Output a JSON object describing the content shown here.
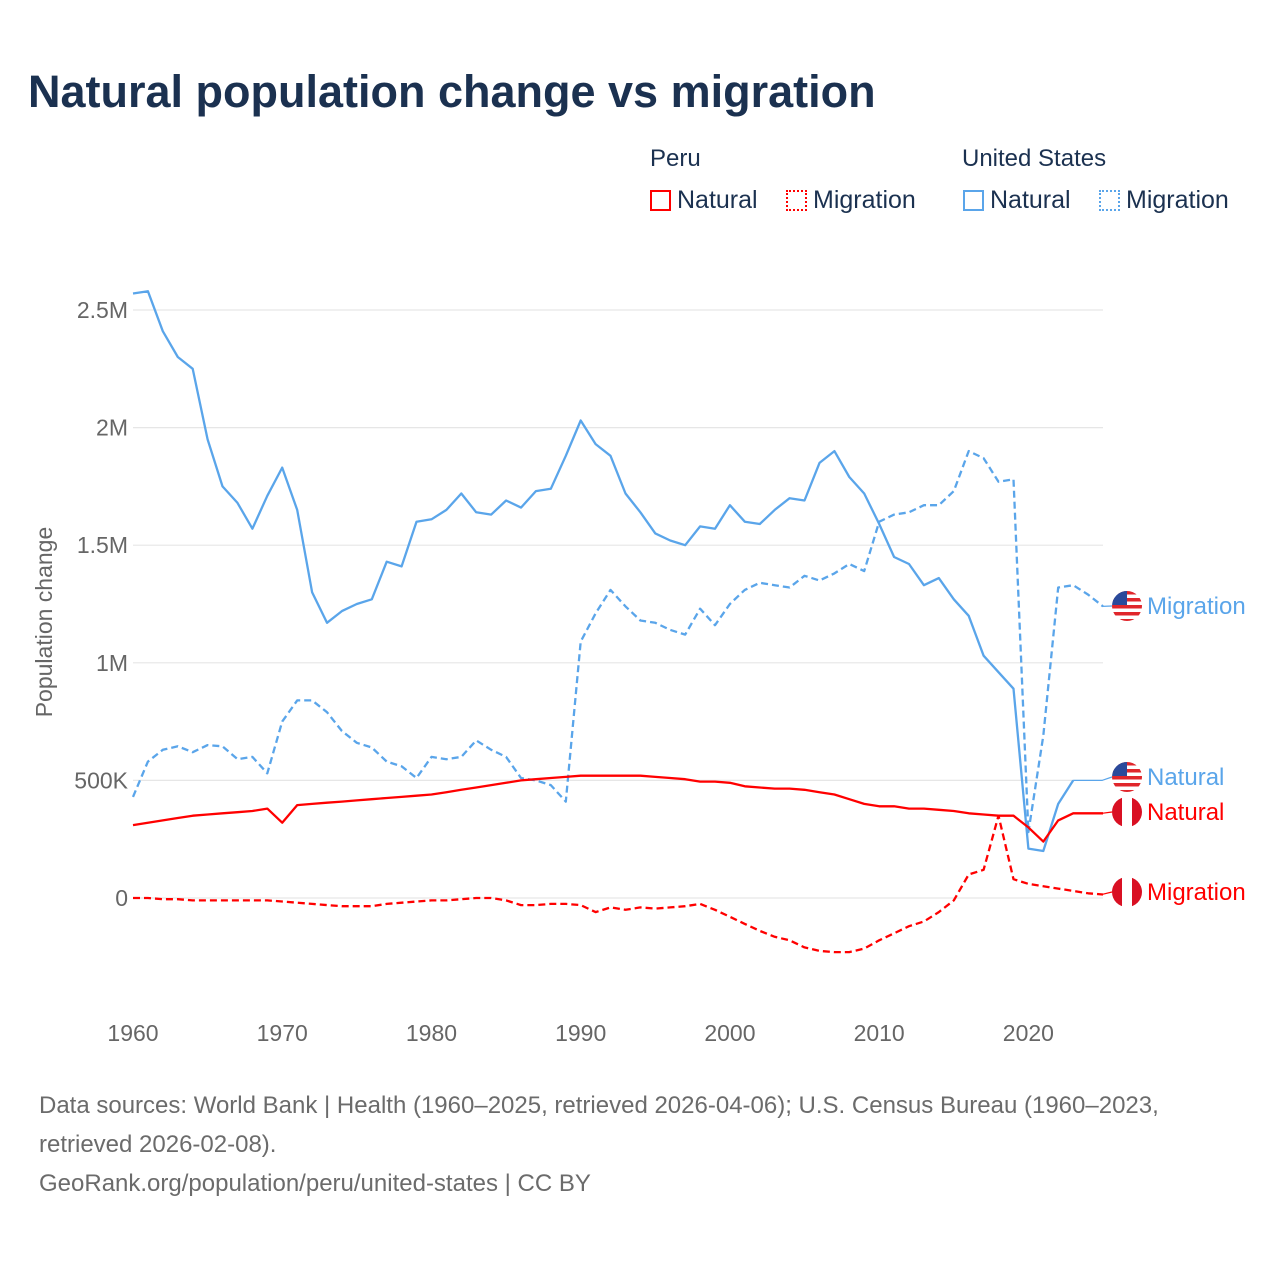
{
  "title": "Natural population change vs migration",
  "legend": {
    "groups": [
      {
        "name": "Peru",
        "items": [
          "Natural",
          "Migration"
        ],
        "color": "#ff0000"
      },
      {
        "name": "United States",
        "items": [
          "Natural",
          "Migration"
        ],
        "color": "#5aa5ea"
      }
    ]
  },
  "footer": {
    "line1": "Data sources: World Bank | Health (1960–2025, retrieved 2026-04-06); U.S. Census Bureau (1960–2023,",
    "line2": "retrieved 2026-02-08).",
    "line3": "GeoRank.org/population/peru/united-states | CC BY"
  },
  "chart_data": {
    "type": "line",
    "title": "Natural population change vs migration",
    "xlabel": "",
    "ylabel": "Population change",
    "xlim": [
      1960,
      2025
    ],
    "ylim": [
      -0.45,
      2.7
    ],
    "y_unit": "millions",
    "x_ticks": [
      1960,
      1970,
      1980,
      1990,
      2000,
      2010,
      2020
    ],
    "x_tick_labels": [
      "1960",
      "1970",
      "1980",
      "1990",
      "2000",
      "2010",
      "2020"
    ],
    "y_ticks": [
      0,
      0.5,
      1,
      1.5,
      2,
      2.5
    ],
    "y_tick_labels": [
      "0",
      "500K",
      "1M",
      "1.5M",
      "2M",
      "2.5M"
    ],
    "grid": true,
    "series": [
      {
        "name": "United States Natural",
        "end_label": "Natural",
        "color": "#5aa5ea",
        "dash": false,
        "start": 1960,
        "values": [
          2.57,
          2.58,
          2.41,
          2.3,
          2.25,
          1.95,
          1.75,
          1.68,
          1.57,
          1.71,
          1.83,
          1.65,
          1.3,
          1.17,
          1.22,
          1.25,
          1.27,
          1.43,
          1.41,
          1.6,
          1.61,
          1.65,
          1.72,
          1.64,
          1.63,
          1.69,
          1.66,
          1.73,
          1.74,
          1.88,
          2.03,
          1.93,
          1.88,
          1.72,
          1.64,
          1.55,
          1.52,
          1.5,
          1.58,
          1.57,
          1.67,
          1.6,
          1.59,
          1.65,
          1.7,
          1.69,
          1.85,
          1.9,
          1.79,
          1.72,
          1.59,
          1.45,
          1.42,
          1.33,
          1.36,
          1.27,
          1.2,
          1.03,
          0.96,
          0.89,
          0.21,
          0.2,
          0.4,
          0.5
        ]
      },
      {
        "name": "United States Migration",
        "end_label": "Migration",
        "color": "#5aa5ea",
        "dash": true,
        "start": 1960,
        "values": [
          0.43,
          0.58,
          0.63,
          0.645,
          0.62,
          0.65,
          0.645,
          0.59,
          0.6,
          0.53,
          0.75,
          0.84,
          0.84,
          0.79,
          0.71,
          0.66,
          0.64,
          0.58,
          0.56,
          0.51,
          0.6,
          0.59,
          0.6,
          0.67,
          0.63,
          0.6,
          0.51,
          0.5,
          0.48,
          0.41,
          1.09,
          1.21,
          1.31,
          1.24,
          1.18,
          1.17,
          1.14,
          1.12,
          1.23,
          1.16,
          1.25,
          1.31,
          1.34,
          1.33,
          1.32,
          1.37,
          1.35,
          1.38,
          1.42,
          1.39,
          1.6,
          1.63,
          1.64,
          1.67,
          1.67,
          1.73,
          1.9,
          1.87,
          1.77,
          1.78,
          0.28,
          0.69,
          1.32,
          1.33,
          1.29,
          1.24
        ]
      },
      {
        "name": "Peru Natural",
        "end_label": "Natural",
        "color": "#ff0000",
        "dash": false,
        "start": 1960,
        "values": [
          0.31,
          0.32,
          0.33,
          0.34,
          0.35,
          0.355,
          0.36,
          0.365,
          0.37,
          0.38,
          0.32,
          0.395,
          0.4,
          0.405,
          0.41,
          0.415,
          0.42,
          0.425,
          0.43,
          0.435,
          0.44,
          0.45,
          0.46,
          0.47,
          0.48,
          0.49,
          0.5,
          0.505,
          0.51,
          0.515,
          0.52,
          0.52,
          0.52,
          0.52,
          0.52,
          0.515,
          0.51,
          0.505,
          0.495,
          0.495,
          0.49,
          0.475,
          0.47,
          0.465,
          0.465,
          0.46,
          0.45,
          0.44,
          0.42,
          0.4,
          0.39,
          0.39,
          0.38,
          0.38,
          0.375,
          0.37,
          0.36,
          0.355,
          0.35,
          0.35,
          0.3,
          0.24,
          0.33,
          0.36,
          0.36,
          0.36
        ]
      },
      {
        "name": "Peru Migration",
        "end_label": "Migration",
        "color": "#ff0000",
        "dash": true,
        "start": 1960,
        "values": [
          0,
          0,
          -0.005,
          -0.005,
          -0.01,
          -0.01,
          -0.01,
          -0.01,
          -0.01,
          -0.01,
          -0.015,
          -0.02,
          -0.025,
          -0.03,
          -0.035,
          -0.035,
          -0.035,
          -0.025,
          -0.02,
          -0.015,
          -0.01,
          -0.01,
          -0.005,
          0,
          0,
          -0.01,
          -0.03,
          -0.03,
          -0.025,
          -0.025,
          -0.03,
          -0.06,
          -0.04,
          -0.05,
          -0.04,
          -0.045,
          -0.04,
          -0.035,
          -0.025,
          -0.05,
          -0.08,
          -0.11,
          -0.14,
          -0.165,
          -0.18,
          -0.21,
          -0.225,
          -0.23,
          -0.23,
          -0.215,
          -0.18,
          -0.15,
          -0.12,
          -0.1,
          -0.06,
          -0.01,
          0.1,
          0.12,
          0.35,
          0.08,
          0.06,
          0.05,
          0.04,
          0.03,
          0.02,
          0.015
        ]
      }
    ]
  }
}
